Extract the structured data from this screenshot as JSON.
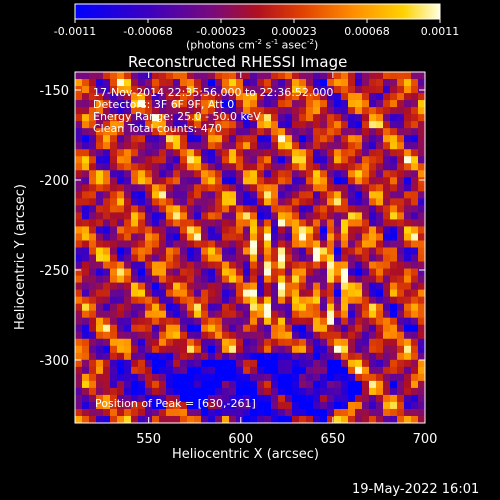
{
  "chart_data": {
    "type": "heatmap",
    "title": "Reconstructed RHESSI Image",
    "xlabel": "Heliocentric X (arcsec)",
    "ylabel": "Heliocentric Y (arcsec)",
    "xlim": [
      510,
      700
    ],
    "ylim": [
      -335,
      -140
    ],
    "x_ticks": [
      550,
      600,
      650,
      700
    ],
    "y_ticks": [
      -150,
      -200,
      -250,
      -300
    ],
    "colorbar": {
      "min": -0.0011,
      "max": 0.0011,
      "ticks": [
        "-0.0011",
        "-0.00068",
        "-0.00023",
        "0.00023",
        "0.00068",
        "0.0011"
      ],
      "units": "(photons cm",
      "units_sup1": "-2",
      "units_mid": " s",
      "units_sup2": "-1",
      "units_mid2": " asec",
      "units_sup3": "-2",
      "units_end": ")"
    },
    "annotations": [
      "17-Nov-2014 22:35:56.000 to 22:36:52.000",
      "Detectors: 3F 6F 9F, Att 0",
      "Energy Range: 25.0 - 50.0 keV",
      "Clean      Total counts: 470"
    ],
    "peak_label": "Position of Peak = [630,-261]",
    "peak": [
      630,
      -261
    ]
  },
  "footer": {
    "date": "19-May-2022 16:01"
  }
}
